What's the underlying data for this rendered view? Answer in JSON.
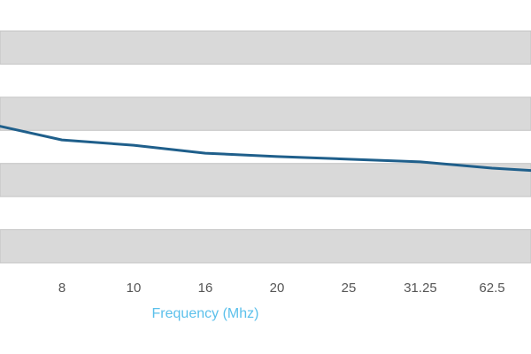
{
  "chart_data": {
    "type": "line",
    "x_label": "Frequency (Mhz)",
    "categories": [
      null,
      "8",
      "10",
      "16",
      "20",
      "25",
      "31.25",
      "62.5",
      null
    ],
    "series": [
      {
        "color": "#1f5f8b",
        "values": [
          4.19,
          3.71,
          3.55,
          3.31,
          3.21,
          3.13,
          3.05,
          2.86,
          2.73
        ]
      }
    ],
    "ylim": [
      0,
      7
    ],
    "yticks": [
      0,
      1,
      2,
      3,
      4,
      5,
      6,
      7
    ],
    "grid": "bands",
    "band_color": "#d9d9d9"
  }
}
